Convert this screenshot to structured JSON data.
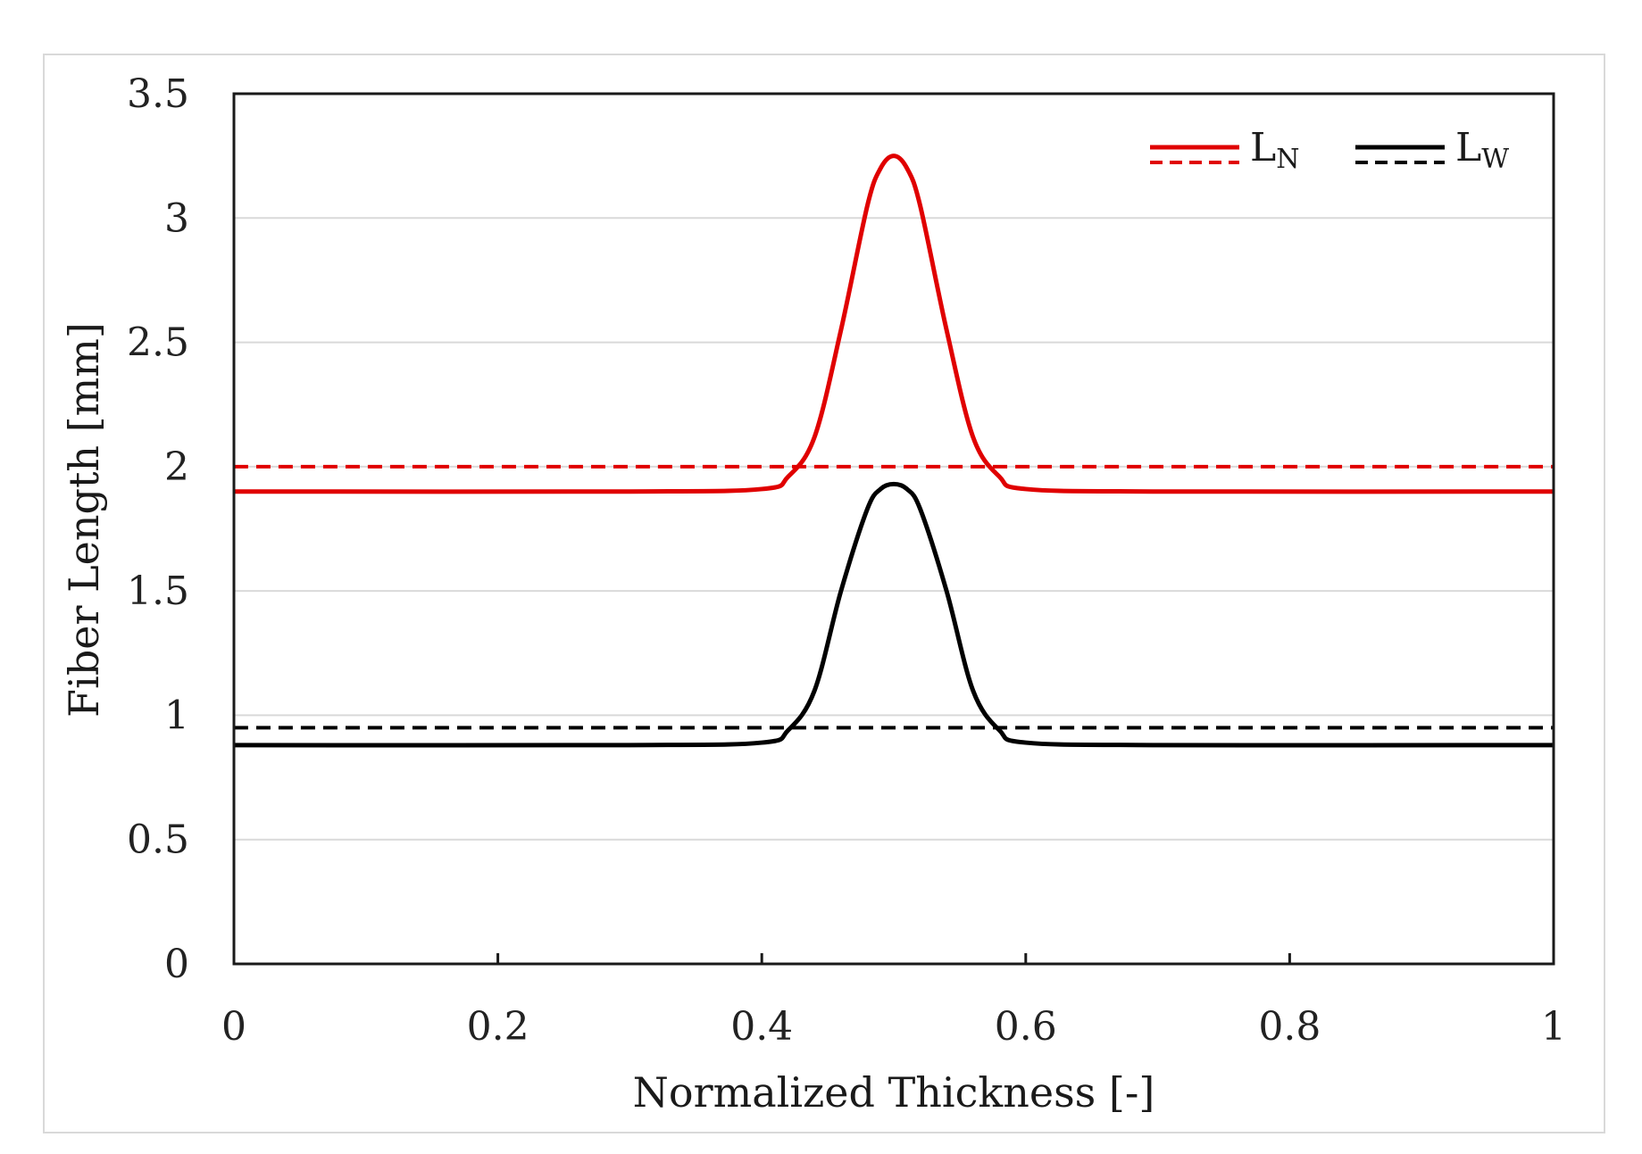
{
  "chart_data": {
    "type": "line",
    "title": "",
    "xlabel": "Normalized Thickness [-]",
    "ylabel": "Fiber Length [mm]",
    "xlim": [
      0,
      1
    ],
    "ylim": [
      0,
      3.5
    ],
    "x_ticks": [
      0,
      0.2,
      0.4,
      0.6,
      0.8,
      1
    ],
    "x_tick_labels": [
      "0",
      "0.2",
      "0.4",
      "0.6",
      "0.8",
      "1"
    ],
    "y_ticks": [
      0,
      0.5,
      1,
      1.5,
      2,
      2.5,
      3,
      3.5
    ],
    "y_tick_labels": [
      "0",
      "0.5",
      "1",
      "1.5",
      "2",
      "2.5",
      "3",
      "3.5"
    ],
    "grid": "horizontal",
    "legend_position": "top-right",
    "series": [
      {
        "name": "L_N",
        "legend_main": "L",
        "legend_sub": "N",
        "color": "#e00000",
        "style": "solid",
        "x": [
          0,
          0.3,
          0.4,
          0.42,
          0.44,
          0.46,
          0.48,
          0.49,
          0.5,
          0.51,
          0.52,
          0.54,
          0.56,
          0.58,
          0.6,
          0.7,
          1
        ],
        "y": [
          1.9,
          1.9,
          1.91,
          1.96,
          2.12,
          2.55,
          3.05,
          3.2,
          3.25,
          3.2,
          3.05,
          2.55,
          2.12,
          1.96,
          1.91,
          1.9,
          1.9
        ]
      },
      {
        "name": "L_N (dashed)",
        "color": "#e00000",
        "style": "dashed",
        "x": [
          0,
          1
        ],
        "y": [
          2.0,
          2.0
        ]
      },
      {
        "name": "L_W",
        "legend_main": "L",
        "legend_sub": "W",
        "color": "#000000",
        "style": "solid",
        "x": [
          0,
          0.3,
          0.4,
          0.42,
          0.44,
          0.46,
          0.48,
          0.49,
          0.5,
          0.51,
          0.52,
          0.54,
          0.56,
          0.58,
          0.6,
          0.7,
          1
        ],
        "y": [
          0.88,
          0.88,
          0.89,
          0.94,
          1.1,
          1.5,
          1.83,
          1.91,
          1.93,
          1.91,
          1.83,
          1.5,
          1.1,
          0.94,
          0.89,
          0.88,
          0.88
        ]
      },
      {
        "name": "L_W (dashed)",
        "color": "#000000",
        "style": "dashed",
        "x": [
          0,
          1
        ],
        "y": [
          0.95,
          0.95
        ]
      }
    ]
  }
}
